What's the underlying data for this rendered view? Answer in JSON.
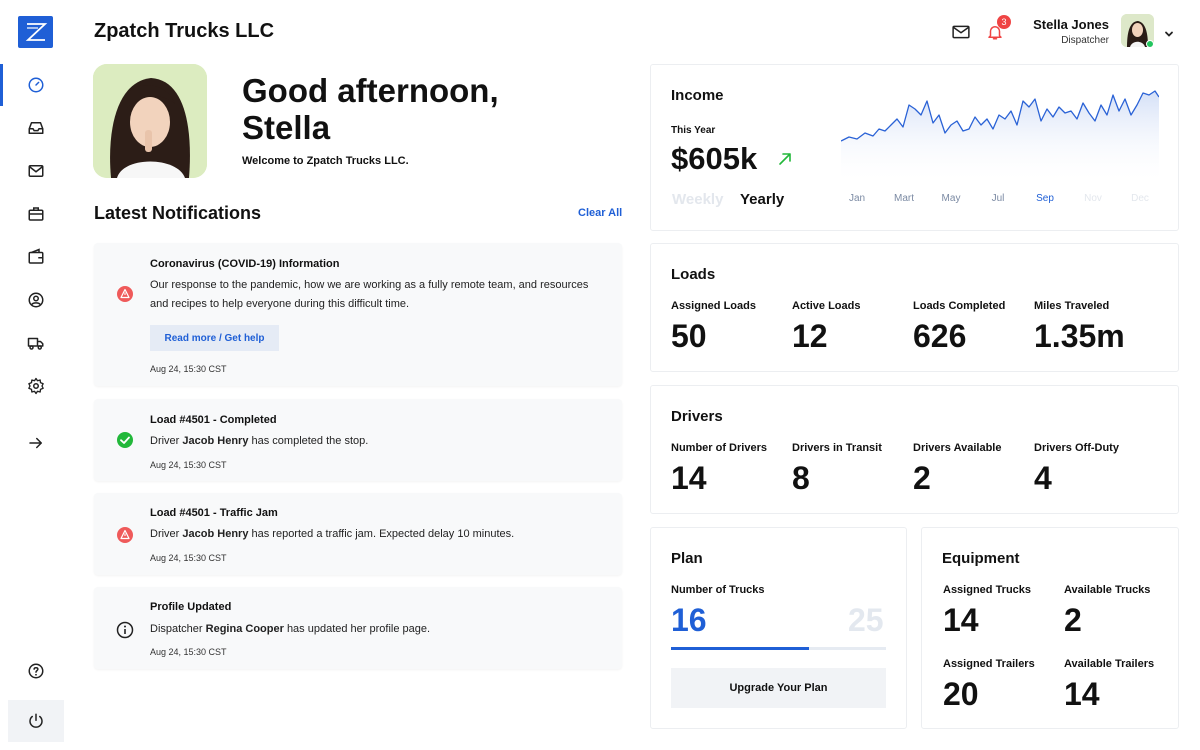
{
  "app": {
    "company": "Zpatch Trucks LLC"
  },
  "header": {
    "notification_count": "3",
    "user_name": "Stella Jones",
    "user_role": "Dispatcher"
  },
  "greeting": {
    "line1": "Good afternoon,",
    "line2": "Stella",
    "welcome": "Welcome to Zpatch Trucks LLC."
  },
  "notifications": {
    "title": "Latest Notifications",
    "clear_all": "Clear All",
    "items": [
      {
        "title": "Coronavirus (COVID-19) Information",
        "body": "Our response to the pandemic, how we are working as a fully remote team, and resources and recipes to help everyone during this difficult time.",
        "action": "Read more / Get help",
        "time": "Aug 24, 15:30 CST"
      },
      {
        "title": "Load #4501 - Completed",
        "pre": "Driver",
        "name": "Jacob Henry",
        "post": "has completed the stop.",
        "time": "Aug 24, 15:30 CST"
      },
      {
        "title": "Load #4501 - Traffic Jam",
        "pre": "Driver",
        "name": "Jacob Henry",
        "post": "has reported a traffic jam. Expected delay 10 minutes.",
        "time": "Aug 24, 15:30 CST"
      },
      {
        "title": "Profile Updated",
        "pre": "Dispatcher",
        "name": "Regina Cooper",
        "post": "has updated her profile page.",
        "time": "Aug 24, 15:30 CST"
      }
    ]
  },
  "income": {
    "title": "Income",
    "period_label": "This Year",
    "value": "$605k",
    "tabs": [
      "Weekly",
      "Yearly"
    ],
    "active_tab": "Yearly",
    "months": [
      "Jan",
      "Mart",
      "May",
      "Jul",
      "Sep",
      "Nov",
      "Dec"
    ],
    "accent": "#1f5fd6"
  },
  "loads": {
    "title": "Loads",
    "stats": [
      {
        "label": "Assigned Loads",
        "value": "50"
      },
      {
        "label": "Active Loads",
        "value": "12"
      },
      {
        "label": "Loads Completed",
        "value": "626"
      },
      {
        "label": "Miles Traveled",
        "value": "1.35m"
      }
    ]
  },
  "drivers": {
    "title": "Drivers",
    "stats": [
      {
        "label": "Number of Drivers",
        "value": "14"
      },
      {
        "label": "Drivers in Transit",
        "value": "8"
      },
      {
        "label": "Drivers Available",
        "value": "2"
      },
      {
        "label": "Drivers Off-Duty",
        "value": "4"
      }
    ]
  },
  "plan": {
    "title": "Plan",
    "label": "Number of Trucks",
    "used": "16",
    "total": "25",
    "progress_fraction": 0.64,
    "upgrade": "Upgrade Your Plan"
  },
  "equipment": {
    "title": "Equipment",
    "stats": [
      {
        "label": "Assigned Trucks",
        "value": "14"
      },
      {
        "label": "Available Trucks",
        "value": "2"
      },
      {
        "label": "Assigned Trailers",
        "value": "20"
      },
      {
        "label": "Available Trailers",
        "value": "14"
      }
    ]
  },
  "icons": {
    "nav": [
      "dashboard-icon",
      "inbox-icon",
      "mail-icon",
      "briefcase-icon",
      "wallet-icon",
      "user-icon",
      "truck-icon",
      "settings-icon",
      "arrow-right-icon"
    ],
    "bottom": [
      "help-icon",
      "power-icon"
    ]
  }
}
